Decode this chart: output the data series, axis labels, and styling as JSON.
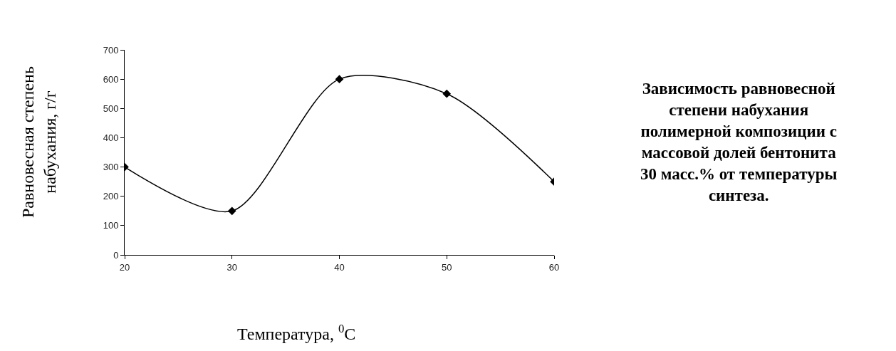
{
  "chart_data": {
    "type": "line",
    "title": "Зависимость равновесной степени набухания полимерной композиции с массовой долей бентонита 30 масс.% от температуры синтеза.",
    "xlabel": "Температура, $^{0}$C",
    "ylabel": "Равновесная степень набухания, г/г",
    "x": [
      20,
      30,
      40,
      50,
      60
    ],
    "series": [
      {
        "color": "#000000",
        "values": [
          300,
          150,
          600,
          550,
          250
        ]
      }
    ],
    "xlim": [
      20,
      60
    ],
    "xticks": [
      20,
      30,
      40,
      50,
      60
    ],
    "ylim": [
      0,
      700
    ],
    "yticks": [
      0,
      100,
      200,
      300,
      400,
      500,
      600,
      700
    ],
    "marker": "diamond",
    "line_style": "solid"
  }
}
